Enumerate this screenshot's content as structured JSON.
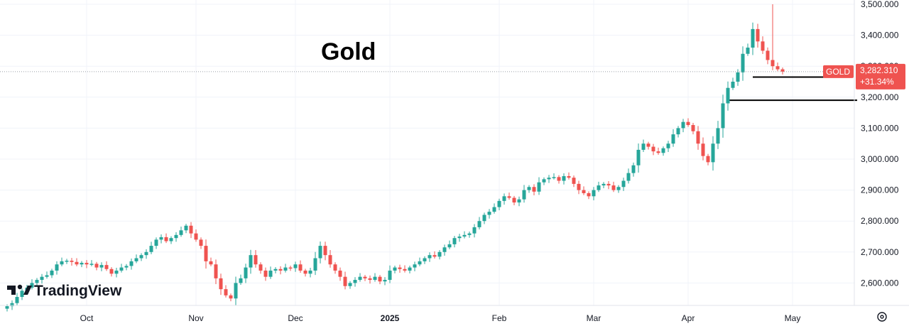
{
  "chart_data": {
    "type": "candlestick",
    "title": "Gold",
    "symbol": "GOLD",
    "last_price": "3,282.310",
    "change": "+31.34%",
    "brand": "TradingView",
    "ylim": [
      2525,
      3500
    ],
    "yticks": [
      {
        "value": 2600,
        "label": "2,600.000"
      },
      {
        "value": 2700,
        "label": "2,700.000"
      },
      {
        "value": 2800,
        "label": "2,800.000"
      },
      {
        "value": 2900,
        "label": "2,900.000"
      },
      {
        "value": 3000,
        "label": "3,000.000"
      },
      {
        "value": 3100,
        "label": "3,100.000"
      },
      {
        "value": 3200,
        "label": "3,200.000"
      },
      {
        "value": 3300,
        "label": "3,300.000"
      },
      {
        "value": 3400,
        "label": "3,400.000"
      },
      {
        "value": 3500,
        "label": "3,500.000"
      }
    ],
    "xticks": [
      {
        "index": 16,
        "label": "Oct",
        "bold": false
      },
      {
        "index": 38,
        "label": "Nov",
        "bold": false
      },
      {
        "index": 58,
        "label": "Dec",
        "bold": false
      },
      {
        "index": 77,
        "label": "2025",
        "bold": true
      },
      {
        "index": 99,
        "label": "Feb",
        "bold": false
      },
      {
        "index": 118,
        "label": "Mar",
        "bold": false
      },
      {
        "index": 137,
        "label": "Apr",
        "bold": false
      },
      {
        "index": 158,
        "label": "May",
        "bold": false
      }
    ],
    "colors": {
      "up": "#26a69a",
      "down": "#ef5350",
      "level_line": "#000000",
      "tag": "#ef5350",
      "axis_text": "#131722"
    },
    "levels": [
      {
        "value": 3265,
        "from_index": 150,
        "to_index": 166
      },
      {
        "value": 3190,
        "from_index": 145,
        "to_index": 171
      }
    ],
    "closes": [
      2525,
      2535,
      2555,
      2575,
      2585,
      2600,
      2610,
      2620,
      2625,
      2640,
      2660,
      2670,
      2672,
      2668,
      2660,
      2665,
      2660,
      2662,
      2650,
      2658,
      2645,
      2630,
      2640,
      2650,
      2655,
      2670,
      2680,
      2690,
      2700,
      2720,
      2740,
      2748,
      2735,
      2745,
      2755,
      2770,
      2785,
      2760,
      2740,
      2720,
      2670,
      2660,
      2615,
      2580,
      2560,
      2550,
      2600,
      2615,
      2650,
      2690,
      2660,
      2640,
      2620,
      2640,
      2645,
      2640,
      2650,
      2648,
      2660,
      2640,
      2630,
      2640,
      2680,
      2720,
      2690,
      2660,
      2640,
      2620,
      2590,
      2600,
      2610,
      2620,
      2615,
      2610,
      2620,
      2605,
      2610,
      2640,
      2650,
      2645,
      2640,
      2650,
      2660,
      2670,
      2680,
      2690,
      2685,
      2700,
      2715,
      2725,
      2745,
      2750,
      2755,
      2760,
      2780,
      2800,
      2820,
      2830,
      2845,
      2865,
      2880,
      2875,
      2860,
      2870,
      2900,
      2910,
      2895,
      2925,
      2935,
      2940,
      2942,
      2930,
      2945,
      2940,
      2920,
      2900,
      2890,
      2880,
      2900,
      2915,
      2920,
      2915,
      2900,
      2910,
      2930,
      2955,
      2980,
      3030,
      3050,
      3040,
      3025,
      3020,
      3035,
      3050,
      3080,
      3100,
      3120,
      3110,
      3090,
      3050,
      3010,
      2990,
      3050,
      3100,
      3180,
      3230,
      3250,
      3280,
      3340,
      3360,
      3420,
      3380,
      3350,
      3320,
      3300,
      3290,
      3282.31
    ]
  }
}
